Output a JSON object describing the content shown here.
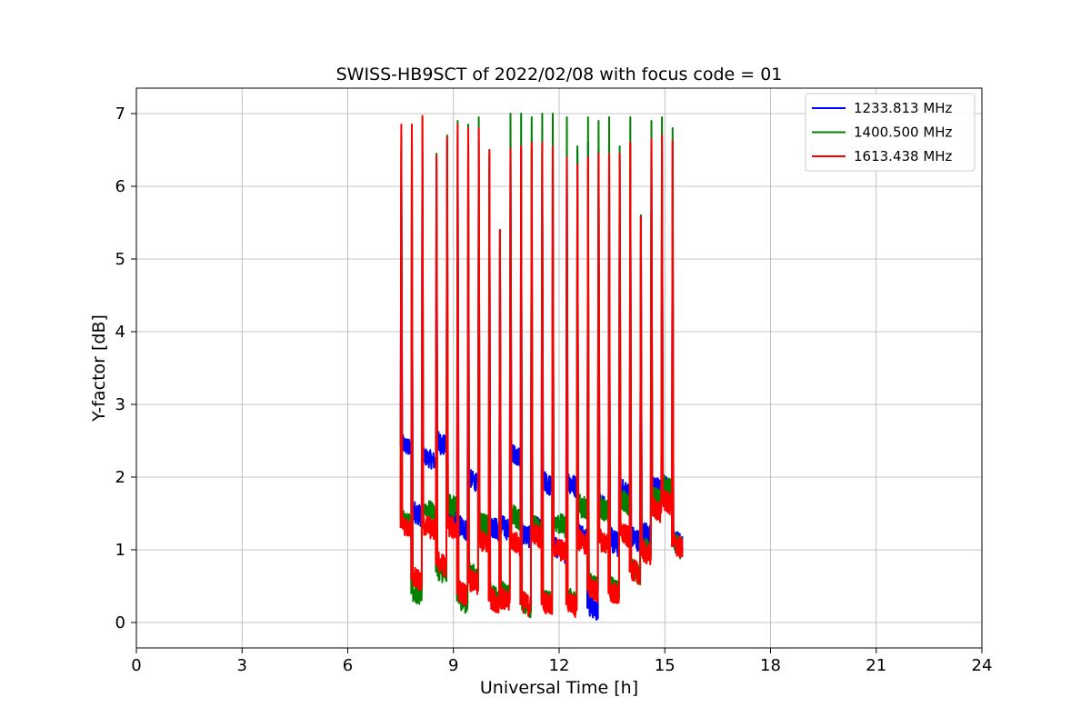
{
  "chart_data": {
    "type": "line",
    "title": "SWISS-HB9SCT of 2022/02/08 with focus code = 01",
    "xlabel": "Universal Time [h]",
    "ylabel": "Y-factor [dB]",
    "xlim": [
      0,
      24
    ],
    "ylim": [
      -0.35,
      7.35
    ],
    "xticks": [
      0,
      3,
      6,
      9,
      12,
      15,
      18,
      21,
      24
    ],
    "yticks": [
      0,
      1,
      2,
      3,
      4,
      5,
      6,
      7
    ],
    "grid": true,
    "legend_position": "top-right",
    "series": [
      {
        "name": "1233.813 MHz",
        "color": "#0000ff",
        "spikes": [
          [
            7.5,
            6.5
          ],
          [
            7.8,
            6.5
          ],
          [
            8.1,
            6.5
          ],
          [
            8.5,
            6.3
          ],
          [
            8.8,
            6.6
          ],
          [
            9.1,
            6.7
          ],
          [
            9.4,
            6.7
          ],
          [
            9.7,
            6.6
          ],
          [
            10.0,
            6.4
          ],
          [
            10.3,
            5.4
          ],
          [
            10.6,
            6.5
          ],
          [
            10.9,
            6.5
          ],
          [
            11.2,
            6.5
          ],
          [
            11.5,
            6.5
          ],
          [
            11.8,
            6.6
          ],
          [
            12.2,
            6.5
          ],
          [
            12.5,
            6.5
          ],
          [
            12.8,
            6.6
          ],
          [
            13.1,
            6.5
          ],
          [
            13.4,
            6.5
          ],
          [
            13.7,
            6.4
          ],
          [
            14.0,
            6.6
          ],
          [
            14.3,
            5.6
          ],
          [
            14.6,
            6.6
          ],
          [
            14.9,
            6.6
          ],
          [
            15.2,
            6.6
          ]
        ],
        "segments": [
          [
            7.5,
            7.8,
            2.42,
            0.25
          ],
          [
            7.8,
            8.1,
            1.5,
            0.3
          ],
          [
            8.1,
            8.5,
            2.25,
            0.25
          ],
          [
            8.5,
            8.8,
            2.45,
            0.3
          ],
          [
            8.8,
            9.1,
            1.45,
            0.3
          ],
          [
            9.1,
            9.4,
            1.3,
            0.3
          ],
          [
            9.4,
            9.7,
            1.95,
            0.25
          ],
          [
            9.7,
            10.0,
            1.3,
            0.3
          ],
          [
            10.0,
            10.3,
            1.3,
            0.3
          ],
          [
            10.3,
            10.6,
            1.3,
            0.3
          ],
          [
            10.6,
            10.9,
            2.3,
            0.25
          ],
          [
            10.9,
            11.2,
            1.2,
            0.3
          ],
          [
            11.2,
            11.5,
            1.3,
            0.3
          ],
          [
            11.5,
            11.8,
            1.9,
            0.3
          ],
          [
            11.8,
            12.2,
            1.0,
            0.3
          ],
          [
            12.2,
            12.5,
            1.9,
            0.3
          ],
          [
            12.5,
            12.8,
            1.2,
            0.3
          ],
          [
            12.8,
            13.1,
            0.2,
            0.3
          ],
          [
            13.1,
            13.4,
            1.6,
            0.3
          ],
          [
            13.4,
            13.7,
            1.1,
            0.35
          ],
          [
            13.7,
            14.0,
            1.8,
            0.3
          ],
          [
            14.0,
            14.3,
            1.15,
            0.3
          ],
          [
            14.3,
            14.6,
            1.2,
            0.35
          ],
          [
            14.6,
            14.9,
            1.85,
            0.3
          ],
          [
            14.9,
            15.2,
            1.85,
            0.3
          ],
          [
            15.2,
            15.5,
            1.1,
            0.3
          ]
        ]
      },
      {
        "name": "1400.500 MHz",
        "color": "#008000",
        "spikes": [
          [
            7.5,
            6.7
          ],
          [
            7.8,
            6.85
          ],
          [
            8.1,
            6.95
          ],
          [
            8.5,
            6.45
          ],
          [
            8.8,
            6.7
          ],
          [
            9.1,
            6.9
          ],
          [
            9.4,
            6.85
          ],
          [
            9.7,
            6.95
          ],
          [
            10.0,
            6.5
          ],
          [
            10.3,
            5.4
          ],
          [
            10.6,
            7.0
          ],
          [
            10.9,
            7.0
          ],
          [
            11.2,
            6.95
          ],
          [
            11.5,
            7.0
          ],
          [
            11.8,
            7.0
          ],
          [
            12.2,
            6.95
          ],
          [
            12.5,
            6.55
          ],
          [
            12.8,
            6.95
          ],
          [
            13.1,
            6.9
          ],
          [
            13.4,
            6.95
          ],
          [
            13.7,
            6.55
          ],
          [
            14.0,
            6.95
          ],
          [
            14.3,
            5.6
          ],
          [
            14.6,
            6.9
          ],
          [
            14.9,
            6.95
          ],
          [
            15.2,
            6.8
          ]
        ],
        "segments": [
          [
            7.5,
            7.8,
            1.4,
            0.25
          ],
          [
            7.8,
            8.1,
            0.4,
            0.3
          ],
          [
            8.1,
            8.5,
            1.55,
            0.25
          ],
          [
            8.5,
            8.8,
            0.7,
            0.3
          ],
          [
            8.8,
            9.1,
            1.6,
            0.3
          ],
          [
            9.1,
            9.4,
            0.3,
            0.3
          ],
          [
            9.4,
            9.7,
            0.65,
            0.3
          ],
          [
            9.7,
            10.0,
            1.35,
            0.3
          ],
          [
            10.0,
            10.3,
            0.35,
            0.3
          ],
          [
            10.3,
            10.6,
            0.4,
            0.3
          ],
          [
            10.6,
            10.9,
            1.45,
            0.3
          ],
          [
            10.9,
            11.2,
            0.25,
            0.3
          ],
          [
            11.2,
            11.5,
            1.3,
            0.3
          ],
          [
            11.5,
            11.8,
            0.3,
            0.3
          ],
          [
            11.8,
            12.2,
            1.35,
            0.3
          ],
          [
            12.2,
            12.5,
            0.3,
            0.3
          ],
          [
            12.5,
            12.8,
            1.6,
            0.35
          ],
          [
            12.8,
            13.1,
            0.5,
            0.3
          ],
          [
            13.1,
            13.4,
            1.55,
            0.3
          ],
          [
            13.4,
            13.7,
            0.45,
            0.3
          ],
          [
            13.7,
            14.0,
            1.65,
            0.3
          ],
          [
            14.0,
            14.3,
            0.7,
            0.3
          ],
          [
            14.3,
            14.6,
            1.0,
            0.3
          ],
          [
            14.6,
            14.9,
            1.7,
            0.3
          ],
          [
            14.9,
            15.2,
            1.85,
            0.3
          ],
          [
            15.2,
            15.5,
            1.05,
            0.3
          ]
        ]
      },
      {
        "name": "1613.438 MHz",
        "color": "#ff0000",
        "spikes": [
          [
            7.5,
            6.85
          ],
          [
            7.8,
            6.85
          ],
          [
            8.1,
            6.97
          ],
          [
            8.5,
            6.42
          ],
          [
            8.8,
            6.68
          ],
          [
            9.1,
            6.85
          ],
          [
            9.4,
            6.8
          ],
          [
            9.7,
            6.8
          ],
          [
            10.0,
            6.5
          ],
          [
            10.3,
            5.4
          ],
          [
            10.6,
            6.52
          ],
          [
            10.9,
            6.55
          ],
          [
            11.2,
            6.6
          ],
          [
            11.5,
            6.6
          ],
          [
            11.8,
            6.55
          ],
          [
            12.2,
            6.4
          ],
          [
            12.5,
            6.3
          ],
          [
            12.8,
            6.4
          ],
          [
            13.1,
            6.45
          ],
          [
            13.4,
            6.45
          ],
          [
            13.7,
            6.45
          ],
          [
            14.0,
            6.6
          ],
          [
            14.3,
            5.58
          ],
          [
            14.6,
            6.65
          ],
          [
            14.9,
            6.7
          ],
          [
            15.2,
            6.63
          ]
        ],
        "segments": [
          [
            7.5,
            7.8,
            1.3,
            0.25
          ],
          [
            7.8,
            8.1,
            0.6,
            0.3
          ],
          [
            8.1,
            8.5,
            1.3,
            0.3
          ],
          [
            8.5,
            8.8,
            0.8,
            0.3
          ],
          [
            8.8,
            9.1,
            1.3,
            0.3
          ],
          [
            9.1,
            9.4,
            0.4,
            0.3
          ],
          [
            9.4,
            9.7,
            0.55,
            0.3
          ],
          [
            9.7,
            10.0,
            1.1,
            0.3
          ],
          [
            10.0,
            10.3,
            0.3,
            0.3
          ],
          [
            10.3,
            10.6,
            0.3,
            0.3
          ],
          [
            10.6,
            10.9,
            1.1,
            0.3
          ],
          [
            10.9,
            11.2,
            0.25,
            0.3
          ],
          [
            11.2,
            11.5,
            1.2,
            0.3
          ],
          [
            11.5,
            11.8,
            0.25,
            0.3
          ],
          [
            11.8,
            12.2,
            1.0,
            0.3
          ],
          [
            12.2,
            12.5,
            0.25,
            0.3
          ],
          [
            12.5,
            12.8,
            1.1,
            0.3
          ],
          [
            12.8,
            13.1,
            0.45,
            0.3
          ],
          [
            13.1,
            13.4,
            1.1,
            0.3
          ],
          [
            13.4,
            13.7,
            0.4,
            0.3
          ],
          [
            13.7,
            14.0,
            1.2,
            0.3
          ],
          [
            14.0,
            14.3,
            0.7,
            0.3
          ],
          [
            14.3,
            14.6,
            0.95,
            0.3
          ],
          [
            14.6,
            14.9,
            1.55,
            0.3
          ],
          [
            14.9,
            15.2,
            1.65,
            0.3
          ],
          [
            15.2,
            15.5,
            1.05,
            0.3
          ]
        ]
      }
    ]
  }
}
